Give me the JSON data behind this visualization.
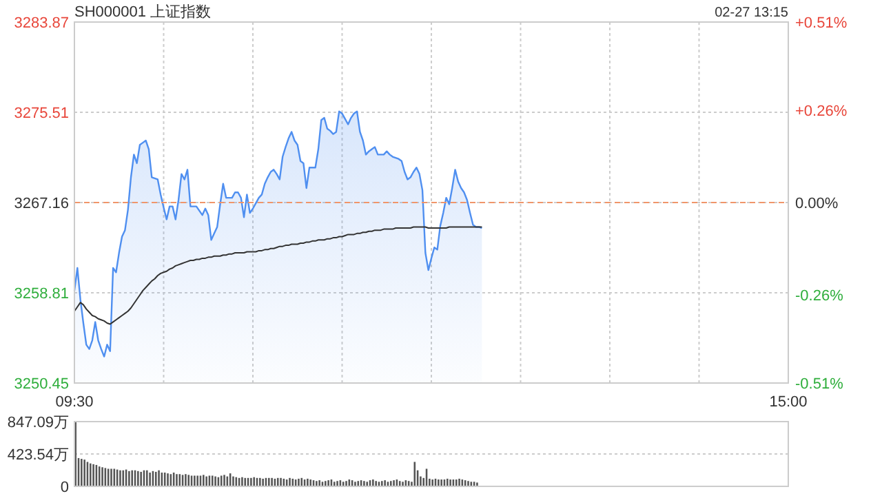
{
  "chart_data": [
    {
      "type": "line",
      "title": "SH000001 上证指数",
      "subtitle": "02-27 13:15",
      "categories": [
        "09:30",
        null,
        null,
        null,
        null,
        null,
        null,
        null,
        null,
        null,
        null,
        null,
        null,
        null,
        null,
        null,
        null,
        null,
        null,
        null,
        null,
        null,
        null,
        null,
        null,
        null,
        null,
        null,
        null,
        null,
        null,
        null,
        null,
        null,
        null,
        null,
        null,
        null,
        null,
        null,
        null,
        null,
        null,
        null,
        null,
        null,
        null,
        null,
        null,
        null,
        null,
        null,
        null,
        null,
        null,
        null,
        null,
        null,
        null,
        null,
        null,
        null,
        null,
        null,
        null,
        null,
        null,
        null,
        null,
        null,
        null,
        null,
        null,
        null,
        null,
        null,
        null,
        null,
        null,
        null,
        null,
        null,
        null,
        null,
        null,
        null,
        null,
        null,
        null,
        null,
        null,
        null,
        null,
        null,
        null,
        null,
        null,
        null,
        null,
        null,
        null,
        null,
        null,
        null,
        null,
        null,
        null,
        null,
        null,
        null,
        null,
        null,
        null,
        null,
        null,
        null,
        null,
        null,
        null,
        null,
        null,
        null,
        null,
        null,
        null,
        null,
        null,
        null,
        null,
        null,
        null,
        null,
        null,
        null,
        null,
        null,
        null,
        null,
        null,
        null,
        null,
        null,
        null,
        null,
        null,
        null,
        null,
        null,
        null,
        null,
        null,
        null,
        null,
        null,
        null,
        null,
        null,
        null,
        null,
        null,
        null,
        null,
        null,
        null,
        null,
        null,
        null,
        null,
        null,
        null,
        null,
        null,
        null,
        null,
        null,
        null,
        null,
        null,
        null,
        null,
        null,
        null,
        null,
        null,
        null,
        null,
        null,
        null,
        null,
        null,
        null,
        null,
        null,
        null,
        null,
        null,
        null,
        null,
        null,
        null,
        null,
        null,
        null,
        null,
        null,
        null,
        null,
        null,
        null,
        null,
        null,
        null,
        null,
        null,
        null,
        null,
        null,
        null,
        null,
        null,
        null,
        null,
        null,
        null,
        null,
        null,
        null,
        null,
        null,
        null,
        null,
        null,
        null,
        null,
        null,
        null,
        null,
        null,
        null,
        null,
        "15:00"
      ],
      "ylim": [
        3250.45,
        3283.87
      ],
      "yticks": [
        3250.45,
        3258.81,
        3267.16,
        3275.51,
        3283.87
      ],
      "y2lim": [
        -0.51,
        0.51
      ],
      "y2ticks": [
        {
          "value": -0.51,
          "label": "-0.51%"
        },
        {
          "value": -0.26,
          "label": "-0.26%"
        },
        {
          "value": 0,
          "label": "0.00%"
        },
        {
          "value": 0.26,
          "label": "+0.26%"
        },
        {
          "value": 0.51,
          "label": "+0.51%"
        }
      ],
      "grid": true,
      "ref_lines": [
        {
          "axis": "y",
          "value": 3267.16,
          "color": "#f0956a",
          "line_style": "dashed"
        }
      ],
      "series": [
        {
          "type": "area",
          "color": "#4f8ff0",
          "values": [
            3259.0,
            3261.1,
            3258.2,
            3256.0,
            3254.0,
            3253.6,
            3254.4,
            3256.1,
            3254.4,
            3253.6,
            3252.9,
            3254.0,
            3253.4,
            3261.1,
            3260.7,
            3262.5,
            3264.0,
            3264.6,
            3266.5,
            3269.5,
            3271.6,
            3270.8,
            3272.5,
            3272.7,
            3272.9,
            3272.1,
            3269.5,
            3269.4,
            3269.3,
            3267.9,
            3266.7,
            3265.6,
            3266.8,
            3266.8,
            3265.6,
            3267.4,
            3269.8,
            3269.3,
            3270.2,
            3266.8,
            3266.8,
            3266.8,
            3266.4,
            3266.0,
            3266.6,
            3266.0,
            3263.7,
            3264.3,
            3264.9,
            3267.0,
            3268.9,
            3267.6,
            3267.6,
            3267.6,
            3268.1,
            3268.1,
            3267.6,
            3265.8,
            3267.9,
            3266.2,
            3266.6,
            3267.1,
            3267.6,
            3267.9,
            3268.9,
            3269.5,
            3270.0,
            3270.2,
            3269.8,
            3269.3,
            3271.4,
            3272.3,
            3273.1,
            3273.7,
            3272.9,
            3272.5,
            3271.0,
            3270.8,
            3268.5,
            3270.4,
            3270.4,
            3270.4,
            3272.1,
            3274.8,
            3275.0,
            3274.0,
            3273.8,
            3273.5,
            3273.7,
            3275.6,
            3275.4,
            3274.9,
            3274.4,
            3275.0,
            3275.4,
            3275.6,
            3273.7,
            3272.9,
            3271.6,
            3271.9,
            3272.1,
            3272.3,
            3271.6,
            3271.6,
            3271.6,
            3271.9,
            3271.6,
            3271.4,
            3271.3,
            3271.2,
            3271.0,
            3270.0,
            3269.3,
            3269.5,
            3270.0,
            3270.4,
            3269.8,
            3268.3,
            3262.5,
            3260.9,
            3262.0,
            3263.0,
            3262.8,
            3265.0,
            3266.2,
            3267.6,
            3267.0,
            3268.5,
            3270.2,
            3269.1,
            3268.5,
            3268.1,
            3267.4,
            3266.2,
            3265.1,
            3264.9,
            3264.9,
            3264.8,
            null,
            null,
            null,
            null,
            null,
            null,
            null,
            null,
            null,
            null,
            null,
            null,
            null,
            null,
            null,
            null,
            null,
            null,
            null,
            null,
            null,
            null,
            null,
            null,
            null,
            null,
            null,
            null,
            null,
            null,
            null,
            null,
            null,
            null,
            null,
            null,
            null,
            null,
            null,
            null,
            null,
            null,
            null,
            null,
            null,
            null,
            null,
            null,
            null,
            null,
            null,
            null,
            null,
            null,
            null,
            null,
            null,
            null,
            null,
            null,
            null,
            null,
            null,
            null,
            null,
            null,
            null,
            null,
            null,
            null,
            null,
            null,
            null,
            null,
            null,
            null,
            null,
            null,
            null,
            null,
            null,
            null,
            null,
            null,
            null,
            null,
            null,
            null,
            null,
            null,
            null,
            null,
            null,
            null,
            null,
            null,
            null,
            null,
            null,
            null,
            null,
            null,
            null
          ]
        },
        {
          "type": "line",
          "color": "#333333",
          "values": [
            3257.1,
            3257.5,
            3257.9,
            3257.7,
            3257.3,
            3257.0,
            3256.7,
            3256.6,
            3256.4,
            3256.3,
            3256.2,
            3256.0,
            3255.9,
            3256.1,
            3256.3,
            3256.5,
            3256.7,
            3256.9,
            3257.1,
            3257.4,
            3257.8,
            3258.2,
            3258.6,
            3259.0,
            3259.3,
            3259.6,
            3259.9,
            3260.1,
            3260.4,
            3260.6,
            3260.7,
            3260.8,
            3261.0,
            3261.1,
            3261.3,
            3261.4,
            3261.5,
            3261.6,
            3261.7,
            3261.8,
            3261.8,
            3261.9,
            3261.9,
            3262.0,
            3262.0,
            3262.1,
            3262.1,
            3262.2,
            3262.2,
            3262.2,
            3262.3,
            3262.3,
            3262.4,
            3262.4,
            3262.5,
            3262.5,
            3262.5,
            3262.5,
            3262.6,
            3262.6,
            3262.6,
            3262.6,
            3262.7,
            3262.7,
            3262.8,
            3262.8,
            3262.9,
            3262.9,
            3263.0,
            3263.1,
            3263.1,
            3263.2,
            3263.2,
            3263.3,
            3263.3,
            3263.3,
            3263.4,
            3263.4,
            3263.5,
            3263.5,
            3263.6,
            3263.6,
            3263.7,
            3263.7,
            3263.7,
            3263.8,
            3263.8,
            3263.9,
            3263.9,
            3264.0,
            3264.0,
            3264.1,
            3264.2,
            3264.2,
            3264.2,
            3264.3,
            3264.3,
            3264.4,
            3264.4,
            3264.5,
            3264.5,
            3264.6,
            3264.6,
            3264.6,
            3264.7,
            3264.7,
            3264.7,
            3264.7,
            3264.8,
            3264.8,
            3264.8,
            3264.8,
            3264.8,
            3264.8,
            3264.9,
            3264.9,
            3264.9,
            3264.9,
            3264.9,
            3264.8,
            3264.8,
            3264.8,
            3264.8,
            3264.8,
            3264.8,
            3264.8,
            3264.9,
            3264.9,
            3264.9,
            3264.9,
            3264.9,
            3264.9,
            3264.9,
            3264.9,
            3264.9,
            3264.9,
            3264.9,
            3264.9,
            null,
            null,
            null,
            null,
            null,
            null,
            null,
            null,
            null,
            null,
            null,
            null,
            null,
            null,
            null,
            null,
            null,
            null,
            null,
            null,
            null,
            null,
            null,
            null,
            null,
            null,
            null,
            null,
            null,
            null,
            null,
            null,
            null,
            null,
            null,
            null,
            null,
            null,
            null,
            null,
            null,
            null,
            null,
            null,
            null,
            null,
            null,
            null,
            null,
            null,
            null,
            null,
            null,
            null,
            null,
            null,
            null,
            null,
            null,
            null,
            null,
            null,
            null,
            null,
            null,
            null,
            null,
            null,
            null,
            null,
            null,
            null,
            null,
            null,
            null,
            null,
            null,
            null,
            null,
            null,
            null,
            null,
            null,
            null,
            null,
            null,
            null,
            null,
            null,
            null,
            null,
            null,
            null,
            null,
            null,
            null,
            null,
            null,
            null,
            null,
            null,
            null,
            null
          ]
        }
      ]
    },
    {
      "type": "bar",
      "color": "#555555",
      "categories": [
        null,
        null,
        null,
        null,
        null,
        null,
        null,
        null,
        null,
        null,
        null,
        null,
        null,
        null,
        null,
        null,
        null,
        null,
        null,
        null,
        null,
        null,
        null,
        null,
        null,
        null,
        null,
        null,
        null,
        null,
        null,
        null,
        null,
        null,
        null,
        null,
        null,
        null,
        null,
        null,
        null,
        null,
        null,
        null,
        null,
        null,
        null,
        null,
        null,
        null,
        null,
        null,
        null,
        null,
        null,
        null,
        null,
        null,
        null,
        null,
        null,
        null,
        null,
        null,
        null,
        null,
        null,
        null,
        null,
        null,
        null,
        null,
        null,
        null,
        null,
        null,
        null,
        null,
        null,
        null,
        null,
        null,
        null,
        null,
        null,
        null,
        null,
        null,
        null,
        null,
        null,
        null,
        null,
        null,
        null,
        null,
        null,
        null,
        null,
        null,
        null,
        null,
        null,
        null,
        null,
        null,
        null,
        null,
        null,
        null,
        null,
        null,
        null,
        null,
        null,
        null,
        null,
        null,
        null,
        null,
        null,
        null,
        null,
        null,
        null,
        null,
        null,
        null,
        null,
        null,
        null,
        null,
        null,
        null,
        null,
        null,
        null,
        null,
        null,
        null,
        null,
        null,
        null,
        null,
        null,
        null,
        null,
        null,
        null,
        null,
        null,
        null,
        null,
        null,
        null,
        null,
        null,
        null,
        null,
        null,
        null,
        null,
        null,
        null,
        null,
        null,
        null,
        null,
        null,
        null,
        null,
        null,
        null,
        null,
        null,
        null,
        null,
        null,
        null,
        null,
        null,
        null,
        null,
        null,
        null,
        null,
        null,
        null,
        null,
        null,
        null,
        null,
        null,
        null,
        null,
        null,
        null,
        null,
        null,
        null,
        null,
        null,
        null,
        null,
        null,
        null,
        null,
        null,
        null,
        null,
        null,
        null,
        null,
        null,
        null,
        null,
        null,
        null,
        null,
        null,
        null,
        null,
        null,
        null,
        null,
        null,
        null,
        null,
        null,
        null,
        null,
        null,
        null,
        null,
        null,
        null,
        null,
        null,
        null,
        null,
        null
      ],
      "ylim": [
        0,
        847.09
      ],
      "yticks": [
        0,
        {
          "value": 423.54,
          "label": "423.54万"
        },
        {
          "value": 847.09,
          "label": "847.09万"
        }
      ],
      "grid": "y",
      "tick_labels": "y",
      "values": [
        840,
        370,
        360,
        350,
        320,
        300,
        290,
        280,
        260,
        250,
        240,
        230,
        230,
        230,
        220,
        210,
        210,
        220,
        200,
        210,
        210,
        200,
        190,
        210,
        210,
        180,
        200,
        190,
        210,
        180,
        180,
        170,
        160,
        180,
        160,
        160,
        150,
        160,
        150,
        140,
        140,
        140,
        140,
        150,
        130,
        140,
        140,
        130,
        120,
        140,
        150,
        130,
        170,
        130,
        120,
        110,
        120,
        110,
        110,
        110,
        120,
        110,
        110,
        100,
        110,
        110,
        110,
        100,
        110,
        110,
        100,
        90,
        110,
        100,
        90,
        100,
        110,
        90,
        100,
        90,
        80,
        70,
        80,
        60,
        70,
        80,
        90,
        60,
        70,
        80,
        60,
        70,
        90,
        80,
        60,
        70,
        80,
        70,
        60,
        80,
        90,
        70,
        60,
        70,
        80,
        60,
        70,
        80,
        90,
        70,
        60,
        80,
        70,
        60,
        320,
        210,
        130,
        110,
        230,
        100,
        90,
        100,
        90,
        90,
        90,
        100,
        90,
        90,
        90,
        100,
        90,
        80,
        70,
        60,
        60,
        50,
        null,
        null,
        null,
        null,
        null,
        null,
        null,
        null,
        null,
        null,
        null,
        null,
        null,
        null,
        null,
        null,
        null,
        null,
        null,
        null,
        null,
        null,
        null,
        null,
        null,
        null,
        null,
        null,
        null,
        null,
        null,
        null,
        null,
        null,
        null,
        null,
        null,
        null,
        null,
        null,
        null,
        null,
        null,
        null,
        null,
        null,
        null,
        null,
        null,
        null,
        null,
        null,
        null,
        null,
        null,
        null,
        null,
        null,
        null,
        null,
        null,
        null,
        null,
        null,
        null,
        null,
        null,
        null,
        null,
        null,
        null,
        null,
        null,
        null,
        null,
        null,
        null,
        null,
        null,
        null,
        null,
        null,
        null,
        null,
        null,
        null,
        null,
        null,
        null,
        null,
        null,
        null,
        null,
        null,
        null,
        null,
        null,
        null,
        null,
        null,
        null,
        null,
        null,
        null,
        null
      ]
    }
  ]
}
